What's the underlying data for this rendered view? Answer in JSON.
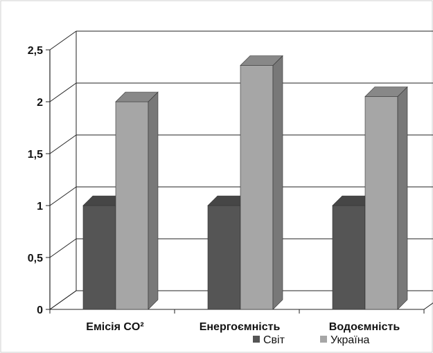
{
  "chart_data": {
    "type": "bar",
    "categories": [
      "Емісія CO²",
      "Енергоємність",
      "Водоємність"
    ],
    "series": [
      {
        "name": "Світ",
        "values": [
          1,
          1,
          1
        ],
        "color": "#555555"
      },
      {
        "name": "Україна",
        "values": [
          2.0,
          2.35,
          2.05
        ],
        "color": "#a6a6a6"
      }
    ],
    "ylim": [
      0,
      2.5
    ],
    "yticks": [
      "0",
      "0,5",
      "1",
      "1,5",
      "2",
      "2,5"
    ],
    "grid": true,
    "legend_position": "bottom-right"
  }
}
